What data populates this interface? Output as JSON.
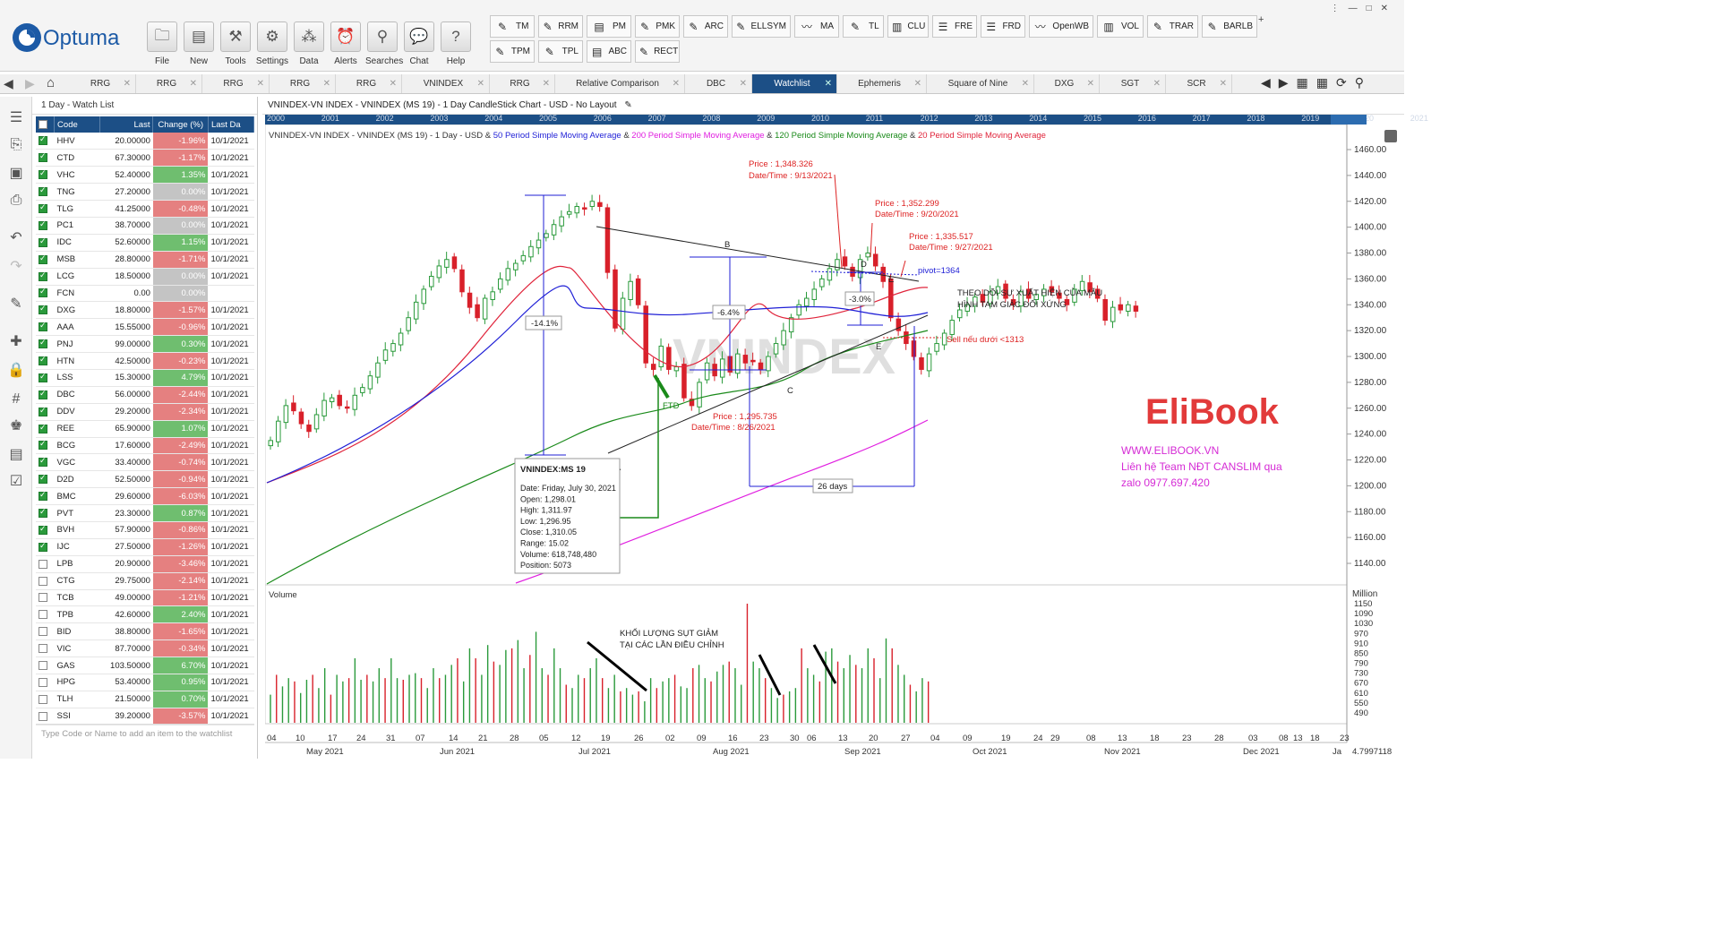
{
  "brand": "Optuma",
  "toolbar": {
    "main_buttons": [
      {
        "label": "File",
        "icon": "folder-icon"
      },
      {
        "label": "New",
        "icon": "new-chart-icon"
      },
      {
        "label": "Tools",
        "icon": "tools-icon"
      },
      {
        "label": "Settings",
        "icon": "gear-icon"
      },
      {
        "label": "Data",
        "icon": "data-icon"
      },
      {
        "label": "Alerts",
        "icon": "alarm-clock-icon"
      },
      {
        "label": "Searches",
        "icon": "search-icon"
      },
      {
        "label": "Chat",
        "icon": "chat-icon"
      },
      {
        "label": "Help",
        "icon": "help-icon"
      }
    ],
    "tools_row1": [
      "TM",
      "RRM",
      "PM",
      "PMK",
      "ARC",
      "ELLSYM",
      "MA",
      "TL",
      "CLU",
      "FRE",
      "FRD",
      "OpenWB",
      "VOL",
      "TRAR",
      "BARLB"
    ],
    "tools_row2": [
      "TPM",
      "TPL",
      "ABC",
      "RECT"
    ],
    "add_symbol": "+"
  },
  "tabs": [
    "RRG",
    "RRG",
    "RRG",
    "RRG",
    "RRG",
    "VNINDEX",
    "RRG",
    "Relative Comparison",
    "DBC",
    "Watchlist",
    "Ephemeris",
    "Square of Nine",
    "DXG",
    "SGT",
    "SCR"
  ],
  "active_tab": "Watchlist",
  "watchlist": {
    "title": "1 Day - Watch List",
    "columns": [
      "Code",
      "Last",
      "Change (%)",
      "Last Da"
    ],
    "rows": [
      {
        "checked": true,
        "code": "HHV",
        "last": "20.00000",
        "change": "-1.96%",
        "date": "10/1/2021"
      },
      {
        "checked": true,
        "code": "CTD",
        "last": "67.30000",
        "change": "-1.17%",
        "date": "10/1/2021"
      },
      {
        "checked": true,
        "code": "VHC",
        "last": "52.40000",
        "change": "1.35%",
        "date": "10/1/2021"
      },
      {
        "checked": true,
        "code": "TNG",
        "last": "27.20000",
        "change": "0.00%",
        "date": "10/1/2021"
      },
      {
        "checked": true,
        "code": "TLG",
        "last": "41.25000",
        "change": "-0.48%",
        "date": "10/1/2021"
      },
      {
        "checked": true,
        "code": "PC1",
        "last": "38.70000",
        "change": "0.00%",
        "date": "10/1/2021"
      },
      {
        "checked": true,
        "code": "IDC",
        "last": "52.60000",
        "change": "1.15%",
        "date": "10/1/2021"
      },
      {
        "checked": true,
        "code": "MSB",
        "last": "28.80000",
        "change": "-1.71%",
        "date": "10/1/2021"
      },
      {
        "checked": true,
        "code": "LCG",
        "last": "18.50000",
        "change": "0.00%",
        "date": "10/1/2021"
      },
      {
        "checked": true,
        "code": "FCN",
        "last": "0.00",
        "change": "0.00%",
        "date": ""
      },
      {
        "checked": true,
        "code": "DXG",
        "last": "18.80000",
        "change": "-1.57%",
        "date": "10/1/2021"
      },
      {
        "checked": true,
        "code": "AAA",
        "last": "15.55000",
        "change": "-0.96%",
        "date": "10/1/2021"
      },
      {
        "checked": true,
        "code": "PNJ",
        "last": "99.00000",
        "change": "0.30%",
        "date": "10/1/2021"
      },
      {
        "checked": true,
        "code": "HTN",
        "last": "42.50000",
        "change": "-0.23%",
        "date": "10/1/2021"
      },
      {
        "checked": true,
        "code": "LSS",
        "last": "15.30000",
        "change": "4.79%",
        "date": "10/1/2021"
      },
      {
        "checked": true,
        "code": "DBC",
        "last": "56.00000",
        "change": "-2.44%",
        "date": "10/1/2021"
      },
      {
        "checked": true,
        "code": "DDV",
        "last": "29.20000",
        "change": "-2.34%",
        "date": "10/1/2021"
      },
      {
        "checked": true,
        "code": "REE",
        "last": "65.90000",
        "change": "1.07%",
        "date": "10/1/2021"
      },
      {
        "checked": true,
        "code": "BCG",
        "last": "17.60000",
        "change": "-2.49%",
        "date": "10/1/2021"
      },
      {
        "checked": true,
        "code": "VGC",
        "last": "33.40000",
        "change": "-0.74%",
        "date": "10/1/2021"
      },
      {
        "checked": true,
        "code": "D2D",
        "last": "52.50000",
        "change": "-0.94%",
        "date": "10/1/2021"
      },
      {
        "checked": true,
        "code": "BMC",
        "last": "29.60000",
        "change": "-6.03%",
        "date": "10/1/2021"
      },
      {
        "checked": true,
        "code": "PVT",
        "last": "23.30000",
        "change": "0.87%",
        "date": "10/1/2021"
      },
      {
        "checked": true,
        "code": "BVH",
        "last": "57.90000",
        "change": "-0.86%",
        "date": "10/1/2021"
      },
      {
        "checked": true,
        "code": "IJC",
        "last": "27.50000",
        "change": "-1.26%",
        "date": "10/1/2021"
      },
      {
        "checked": false,
        "code": "LPB",
        "last": "20.90000",
        "change": "-3.46%",
        "date": "10/1/2021"
      },
      {
        "checked": false,
        "code": "CTG",
        "last": "29.75000",
        "change": "-2.14%",
        "date": "10/1/2021"
      },
      {
        "checked": false,
        "code": "TCB",
        "last": "49.00000",
        "change": "-1.21%",
        "date": "10/1/2021"
      },
      {
        "checked": false,
        "code": "TPB",
        "last": "42.60000",
        "change": "2.40%",
        "date": "10/1/2021"
      },
      {
        "checked": false,
        "code": "BID",
        "last": "38.80000",
        "change": "-1.65%",
        "date": "10/1/2021"
      },
      {
        "checked": false,
        "code": "VIC",
        "last": "87.70000",
        "change": "-0.34%",
        "date": "10/1/2021"
      },
      {
        "checked": false,
        "code": "GAS",
        "last": "103.50000",
        "change": "6.70%",
        "date": "10/1/2021"
      },
      {
        "checked": false,
        "code": "HPG",
        "last": "53.40000",
        "change": "0.95%",
        "date": "10/1/2021"
      },
      {
        "checked": false,
        "code": "TLH",
        "last": "21.50000",
        "change": "0.70%",
        "date": "10/1/2021"
      },
      {
        "checked": false,
        "code": "SSI",
        "last": "39.20000",
        "change": "-3.57%",
        "date": "10/1/2021"
      }
    ],
    "add_placeholder": "Type Code or Name to add an item to the watchlist"
  },
  "chart_header": "VNINDEX-VN INDEX - VNINDEX (MS 19) - 1 Day CandleStick Chart - USD - No Layout",
  "year_bar": [
    "2000",
    "2001",
    "2002",
    "2003",
    "2004",
    "2005",
    "2006",
    "2007",
    "2008",
    "2009",
    "2010",
    "2011",
    "2012",
    "2013",
    "2014",
    "2015",
    "2016",
    "2017",
    "2018",
    "2019",
    "2020",
    "2021"
  ],
  "legend": {
    "prefix": "VNINDEX-VN INDEX - VNINDEX (MS 19) - 1 Day - USD &",
    "ma50": "50 Period Simple Moving Average",
    "ma200": "200 Period Simple Moving Average",
    "ma120": "120 Period Simple Moving Average",
    "ma20": "20 Period Simple Moving Average",
    "amp": "&"
  },
  "colors": {
    "ma50": "#1f1fd6",
    "ma200": "#e01ee0",
    "ma120": "#1a8a1a",
    "ma20": "#e0243b",
    "up": "#2a9a3b",
    "down": "#d8202a",
    "accent": "#1c4f86"
  },
  "annotations": {
    "p1": "Price : 1,348.326",
    "d1": "Date/Time : 9/13/2021",
    "p2": "Price : 1,352.299",
    "d2": "Date/Time : 9/20/2021",
    "p3": "Price : 1,335.517",
    "d3": "Date/Time : 9/27/2021",
    "p4": "Price : 1,295.735",
    "d4": "Date/Time : 8/26/2021",
    "pivot": "pivot=1364",
    "sell": "Sell  nếu dưới <1313",
    "pattern_line1": "THEO DÕI SỰ XUẤT HIỆN CỦA MẪU",
    "pattern_line2": "HÌNH TAM GIÁC  ĐỐI XỨNG",
    "pct1": "-14.1%",
    "pct2": "-6.4%",
    "pct3": "-3.0%",
    "days": "26 days",
    "ftd": "FTD",
    "labels": [
      "A",
      "B",
      "C",
      "D",
      "E",
      "E"
    ],
    "volume_note1": "KHỐI LƯỢNG SỤT GIẢM",
    "volume_note2": "TẠI CÁC LẦN ĐIỀU CHỈNH",
    "watermark": "VNINDEX",
    "brand": "EliBook",
    "brand_lines": [
      "WWW.ELIBOOK.VN",
      "Liên hệ Team NĐT CANSLIM qua",
      "zalo 0977.697.420"
    ]
  },
  "tooltip": {
    "title": "VNINDEX:MS 19",
    "lines": [
      "Date: Friday, July 30, 2021",
      "Open: 1,298.01",
      "High: 1,311.97",
      "Low: 1,296.95",
      "Close: 1,310.05",
      "Range: 15.02",
      "Volume: 618,748,480",
      "Position: 5073"
    ]
  },
  "price_axis": [
    "1460.00",
    "1440.00",
    "1420.00",
    "1400.00",
    "1380.00",
    "1360.00",
    "1340.00",
    "1320.00",
    "1300.00",
    "1280.00",
    "1260.00",
    "1240.00",
    "1220.00",
    "1200.00",
    "1180.00",
    "1160.00",
    "1140.00"
  ],
  "volume_panel": {
    "title": "Volume",
    "unit": "Million",
    "ticks": [
      "1150",
      "1090",
      "1030",
      "970",
      "910",
      "850",
      "790",
      "730",
      "670",
      "610",
      "550",
      "490"
    ]
  },
  "date_axis": {
    "days": [
      "04",
      "10",
      "17",
      "24",
      "31",
      "07",
      "14",
      "21",
      "28",
      "05",
      "12",
      "19",
      "26",
      "02",
      "09",
      "16",
      "23",
      "30",
      "06",
      "13",
      "20",
      "27",
      "04",
      "09",
      "19",
      "24",
      "29",
      "08",
      "13",
      "18",
      "23",
      "28",
      "03",
      "08",
      "13",
      "18",
      "23",
      "28",
      "02"
    ],
    "months": [
      "May 2021",
      "Jun 2021",
      "Jul 2021",
      "Aug 2021",
      "Sep 2021",
      "Oct 2021",
      "Nov 2021",
      "Dec 2021",
      "Ja"
    ],
    "corner": "4.7997118"
  }
}
